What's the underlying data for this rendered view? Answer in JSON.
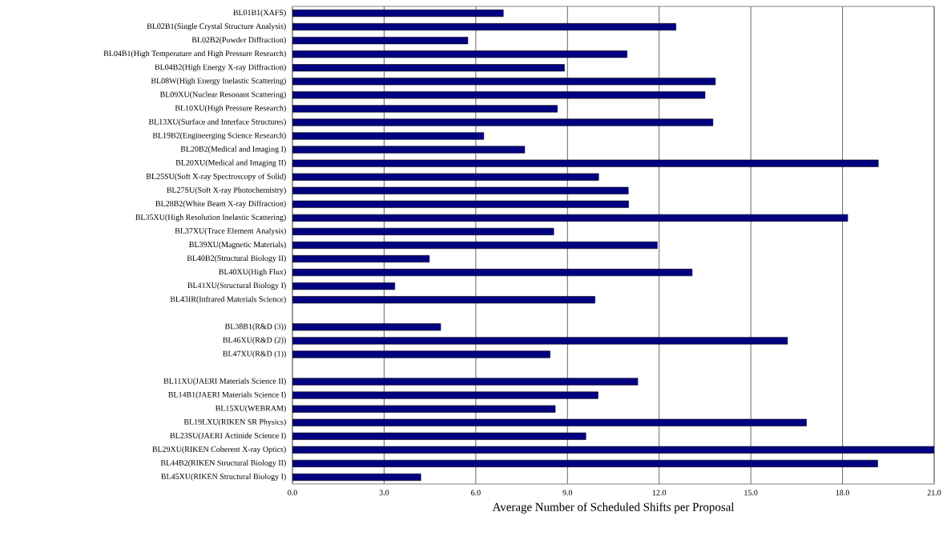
{
  "chart_data": {
    "type": "bar",
    "orientation": "horizontal",
    "xlabel": "Average Number of Scheduled Shifts per Proposal",
    "categories": [
      "BL01B1(XAFS)",
      "BL02B1(Single Crystal Structure Analysis)",
      "BL02B2(Powder Diffraction)",
      "BL04B1(High Temperature and High Pressure Research)",
      "BL04B2(High Energy X-ray Diffraction)",
      "BL08W(High Energy Inelastic Scattering)",
      "BL09XU(Nuclear Resonant Scattering)",
      "BL10XU(High Pressure Research)",
      "BL13XU(Surface and Interface Structures)",
      "BL19B2(Engineerging Science Research)",
      "BL20B2(Medical and Imaging I)",
      "BL20XU(Medical and Imaging II)",
      "BL25SU(Soft X-ray Spectroscopy of Solid)",
      "BL27SU(Soft X-ray Photochemistry)",
      "BL28B2(White Beam X-ray Diffraction)",
      "BL35XU(High Resolution Inelastic Scattering)",
      "BL37XU(Trace Element Analysis)",
      "BL39XU(Magnetic Materials)",
      "BL40B2(Structural Biology II)",
      "BL40XU(High Flux)",
      "BL41XU(Structural Biology I)",
      "BL43IR(Infrared Materials Science)",
      null,
      "BL38B1(R&D (3))",
      "BL46XU(R&D (2))",
      "BL47XU(R&D (1))",
      null,
      "BL11XU(JAERI Materials Science II)",
      "BL14B1(JAERI Materials Science I)",
      "BL15XU(WEBRAM)",
      "BL19LXU(RIKEN SR Physics)",
      "BL23SU(JAERI Actinide Science I)",
      "BL29XU(RIKEN Coherent X-ray Optics)",
      "BL44B2(RIKEN Structural Biology II)",
      "BL45XU(RIKEN Structural Biology I)"
    ],
    "values": [
      6.9,
      12.55,
      5.74,
      10.95,
      8.9,
      13.84,
      13.5,
      8.67,
      13.76,
      6.26,
      7.6,
      19.17,
      10.02,
      10.99,
      11.0,
      18.17,
      8.55,
      11.94,
      4.48,
      13.08,
      3.35,
      9.9,
      null,
      4.85,
      16.2,
      8.43,
      null,
      11.3,
      10.0,
      8.6,
      16.82,
      9.6,
      21.0,
      19.15,
      4.2
    ],
    "color": "#000080",
    "xlim": [
      0,
      21
    ],
    "xticks": [
      {
        "value": 0,
        "label": "0.0"
      },
      {
        "value": 3,
        "label": "3.0"
      },
      {
        "value": 6,
        "label": "6.0"
      },
      {
        "value": 9,
        "label": "9.0"
      },
      {
        "value": 12,
        "label": "12.0"
      },
      {
        "value": 15,
        "label": "15.0"
      },
      {
        "value": 18,
        "label": "18.0"
      },
      {
        "value": 21,
        "label": "21.0"
      }
    ],
    "grid": "x"
  }
}
